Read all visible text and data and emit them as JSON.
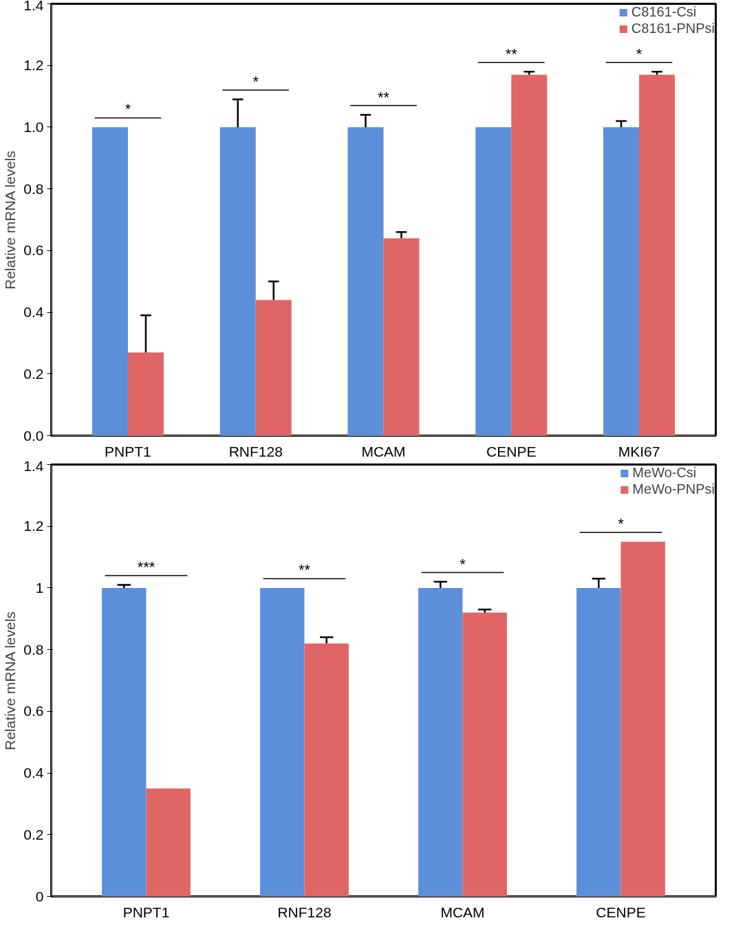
{
  "chart_data": [
    {
      "type": "bar",
      "ylabel": "Relative mRNA levels",
      "categories": [
        "PNPT1",
        "RNF128",
        "MCAM",
        "CENPE",
        "MKI67"
      ],
      "series": [
        {
          "name": "C8161-Csi",
          "color": "#5b8fd9",
          "values": [
            1.0,
            1.0,
            1.0,
            1.0,
            1.0
          ],
          "errors": [
            null,
            [
              1.0,
              1.09
            ],
            [
              1.0,
              1.04
            ],
            null,
            [
              1.0,
              1.02
            ]
          ]
        },
        {
          "name": "C8161-PNPsi",
          "color": "#e06666",
          "values": [
            0.27,
            0.44,
            0.64,
            1.17,
            1.17
          ],
          "errors": [
            [
              0.27,
              0.39
            ],
            [
              0.44,
              0.5
            ],
            [
              0.64,
              0.66
            ],
            [
              1.17,
              1.18
            ],
            [
              1.17,
              1.18
            ]
          ]
        }
      ],
      "ylim": [
        0,
        1.4
      ],
      "yticks": [
        {
          "value": 0,
          "label": "0.0"
        },
        {
          "value": 0.2,
          "label": "0.2"
        },
        {
          "value": 0.4,
          "label": "0.4"
        },
        {
          "value": 0.6,
          "label": "0.6"
        },
        {
          "value": 0.8,
          "label": "0.8"
        },
        {
          "value": 1,
          "label": "1.0"
        },
        {
          "value": 1.2,
          "label": "1.2"
        },
        {
          "value": 1.4,
          "label": "1.4"
        }
      ],
      "grid": false,
      "legend": "top right",
      "annotations": [
        "*",
        "*",
        "**",
        "**",
        "*"
      ]
    },
    {
      "type": "bar",
      "ylabel": "Relative mRNA levels",
      "categories": [
        "PNPT1",
        "RNF128",
        "MCAM",
        "CENPE"
      ],
      "series": [
        {
          "name": "MeWo-Csi",
          "color": "#5b8fd9",
          "values": [
            1.0,
            1.0,
            1.0,
            1.0
          ],
          "errors": [
            [
              1.0,
              1.01
            ],
            null,
            [
              1.0,
              1.02
            ],
            [
              1.0,
              1.03
            ]
          ]
        },
        {
          "name": "MeWo-PNPsi",
          "color": "#e06666",
          "values": [
            0.35,
            0.82,
            0.92,
            1.15
          ],
          "errors": [
            null,
            [
              0.82,
              0.84
            ],
            [
              0.92,
              0.93
            ],
            null
          ]
        }
      ],
      "ylim": [
        0,
        1.4
      ],
      "yticks": [
        0,
        0.2,
        0.4,
        0.6,
        0.8,
        1,
        1.2,
        1.4
      ],
      "grid": false,
      "legend": "top right",
      "annotations": [
        "***",
        "**",
        "*",
        "*"
      ]
    }
  ]
}
